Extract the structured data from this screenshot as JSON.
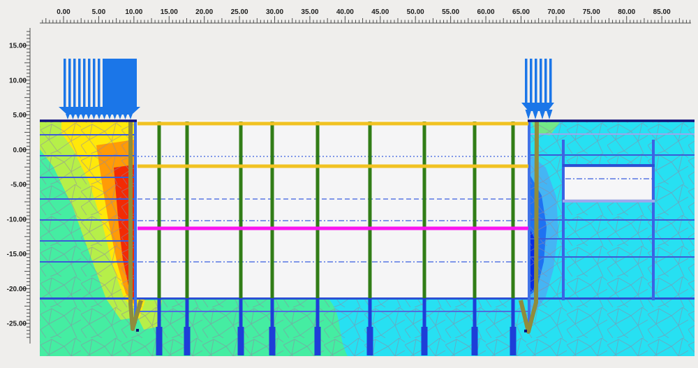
{
  "view": {
    "description": "2D finite-element excavation model output canvas (geotechnical FEM, PLAXIS-style) with top and left measuring rulers",
    "background_color": "#efeeec",
    "excavation_void_color": "#f5f5f6"
  },
  "rulers": {
    "horizontal": {
      "labels": [
        "0.00",
        "5.00",
        "10.00",
        "15.00",
        "20.00",
        "25.00",
        "30.00",
        "35.00",
        "40.00",
        "45.00",
        "50.00",
        "55.00",
        "60.00",
        "65.00",
        "70.00",
        "75.00",
        "80.00",
        "85.00"
      ]
    },
    "vertical": {
      "labels": [
        "15.00",
        "10.00",
        "5.00",
        "0.00",
        "-5.00",
        "-10.00",
        "-15.00",
        "-20.00",
        "-25.00"
      ]
    }
  },
  "colors": {
    "contour_red": "#f22b04",
    "contour_orange": "#ff9b07",
    "contour_yellow": "#ffe80a",
    "contour_yellowgreen": "#b6ef49",
    "contour_springgreen": "#45eda2",
    "contour_cyan": "#27e0f2",
    "contour_lightblue": "#45b5f4",
    "contour_mediumblue": "#1e72f2",
    "contour_deepblue": "#0a2de4",
    "mesh_line": "#8e87a3",
    "wall_olive": "#8f8c3c",
    "interface_blue": "#3f72e8",
    "pile_green": "#317d17",
    "pile_embedded_blue": "#1d3ed8",
    "strut_gold": "#f1c222",
    "level_magenta": "#fa14f0",
    "water_dash_blue": "#7f96e8",
    "layer_line_blue": "#3a5cd8",
    "surface_navy": "#0d0d78",
    "load_blue": "#1b76e8",
    "structure_blue": "#3b63e4",
    "structure_periwinkle": "#9aa8ee"
  },
  "model": {
    "note": "approximate values read from the rulers",
    "ground_surface_elevation_m": 4.2,
    "excavation": {
      "left_wall_x_m": 10.0,
      "right_wall_x_m": 66.2,
      "floor_elevation_m": -21.4,
      "wall_tip_elevation_m": -26.0
    },
    "struts": [
      {
        "name": "strut-level-1",
        "elevation_m": 3.7,
        "color": "#f1c222"
      },
      {
        "name": "strut-level-2",
        "elevation_m": -2.4,
        "color": "#f1c222"
      }
    ],
    "magenta_level_elevation_m": -11.4,
    "dashed_water_levels_m": [
      -1.0,
      -7.1,
      -10.3,
      -16.2
    ],
    "piles": {
      "count": 9,
      "x_positions_m": [
        13.6,
        17.6,
        25.2,
        29.7,
        36.1,
        43.6,
        51.3,
        58.4,
        63.9
      ],
      "tip_elevation_m": -29.6
    },
    "loads": [
      {
        "name": "distributed-load-left",
        "x_from_m": 0.0,
        "x_to_m": 10.4
      },
      {
        "name": "distributed-load-right",
        "x_from_m": 65.5,
        "x_to_m": 69.4
      }
    ],
    "right_structure_box": {
      "x_from_m": 70.9,
      "x_to_m": 83.9,
      "top_elevation_m": -2.3,
      "bottom_elevation_m": -7.5
    }
  }
}
